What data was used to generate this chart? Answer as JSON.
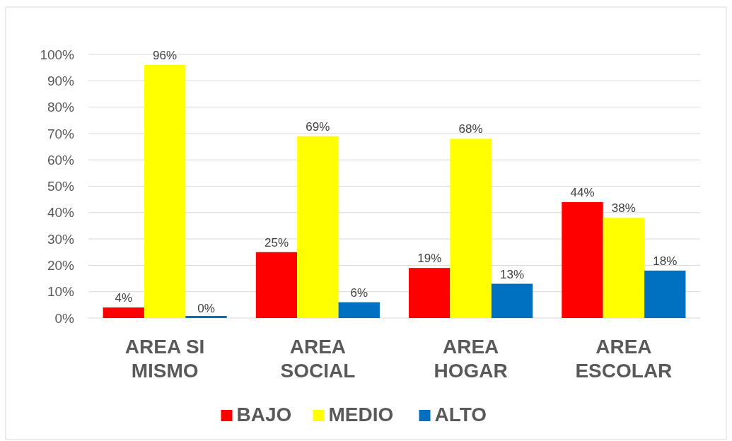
{
  "chart_data": {
    "type": "bar",
    "categories": [
      "AREA SI MISMO",
      "AREA SOCIAL",
      "AREA HOGAR",
      "AREA ESCOLAR"
    ],
    "series": [
      {
        "name": "BAJO",
        "color": "#ff0000",
        "values": [
          4,
          25,
          19,
          44
        ],
        "value_labels": [
          "4%",
          "25%",
          "19%",
          "44%"
        ]
      },
      {
        "name": "MEDIO",
        "color": "#ffff00",
        "values": [
          96,
          69,
          68,
          38
        ],
        "value_labels": [
          "96%",
          "69%",
          "68%",
          "38%"
        ]
      },
      {
        "name": "ALTO",
        "color": "#0070c0",
        "values": [
          0,
          6,
          13,
          18
        ],
        "value_labels": [
          "0%",
          "6%",
          "13%",
          "18%"
        ]
      }
    ],
    "ylim": [
      0,
      100
    ],
    "yticks": [
      {
        "value": 0,
        "label": "0%"
      },
      {
        "value": 10,
        "label": "10%"
      },
      {
        "value": 20,
        "label": "20%"
      },
      {
        "value": 30,
        "label": "30%"
      },
      {
        "value": 40,
        "label": "40%"
      },
      {
        "value": 50,
        "label": "50%"
      },
      {
        "value": 60,
        "label": "60%"
      },
      {
        "value": 70,
        "label": "70%"
      },
      {
        "value": 80,
        "label": "80%"
      },
      {
        "value": 90,
        "label": "90%"
      },
      {
        "value": 100,
        "label": "100%"
      }
    ],
    "grid": "y",
    "legend": "bottom"
  }
}
